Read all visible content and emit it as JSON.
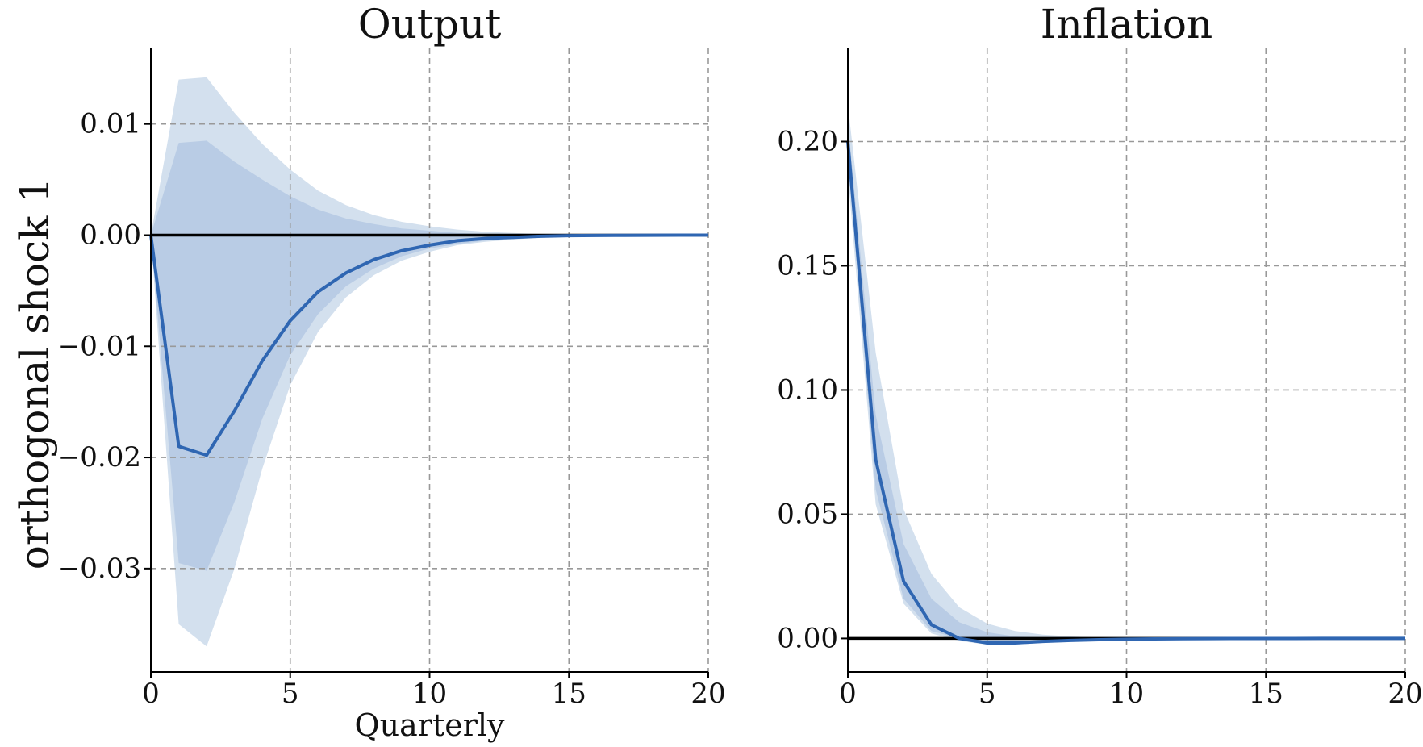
{
  "figure": {
    "ylabel": "orthogonal shock 1",
    "colors": {
      "line": "#2f66b2",
      "band_outer": "#d3e0ee",
      "band_inner": "#b9cce5",
      "zero_line": "#000000",
      "grid": "#999999"
    }
  },
  "chart_data": [
    {
      "type": "line",
      "title": "Output",
      "xlabel": "Quarterly",
      "ylabel": "orthogonal shock 1",
      "x": [
        0,
        1,
        2,
        3,
        4,
        5,
        6,
        7,
        8,
        9,
        10,
        11,
        12,
        13,
        14,
        15,
        16,
        17,
        18,
        19,
        20
      ],
      "xlim": [
        0,
        20
      ],
      "ylim": [
        -0.0393,
        0.0168
      ],
      "xticks": [
        0,
        5,
        10,
        15,
        20
      ],
      "xtick_labels": [
        "0",
        "5",
        "10",
        "15",
        "20"
      ],
      "yticks": [
        0.01,
        0.0,
        -0.01,
        -0.02,
        -0.03
      ],
      "ytick_labels": [
        "0.01",
        "0.00",
        "−0.01",
        "−0.02",
        "−0.03"
      ],
      "grid": true,
      "zero_line": true,
      "series": [
        {
          "values": [
            0.0,
            -0.019,
            -0.0198,
            -0.0158,
            -0.0113,
            -0.0077,
            -0.0051,
            -0.0034,
            -0.0022,
            -0.0014,
            -0.0009,
            -0.0005,
            -0.0003,
            -0.0002,
            -0.0001,
            -5e-05,
            -3e-05,
            -2e-05,
            -1e-05,
            0.0,
            0.0
          ]
        }
      ],
      "bands": [
        {
          "level": "outer",
          "upper": [
            0.0,
            0.014,
            0.0142,
            0.011,
            0.0082,
            0.0059,
            0.004,
            0.0027,
            0.0018,
            0.0012,
            0.0008,
            0.0005,
            0.0003,
            0.0002,
            0.0001,
            5e-05,
            3e-05,
            2e-05,
            1e-05,
            0.0,
            0.0
          ],
          "lower": [
            0.0,
            -0.035,
            -0.037,
            -0.03,
            -0.021,
            -0.0135,
            -0.0087,
            -0.0056,
            -0.0036,
            -0.0023,
            -0.0015,
            -0.0009,
            -0.0006,
            -0.0004,
            -0.0002,
            -0.0001,
            -6e-05,
            -4e-05,
            -2e-05,
            -1e-05,
            0.0
          ]
        },
        {
          "level": "inner",
          "upper": [
            0.0,
            0.0083,
            0.0085,
            0.0066,
            0.005,
            0.0035,
            0.0023,
            0.0015,
            0.001,
            0.0006,
            0.0004,
            0.0002,
            0.0001,
            6e-05,
            3e-05,
            2e-05,
            1e-05,
            0.0,
            0.0,
            0.0,
            0.0
          ],
          "lower": [
            0.0,
            -0.0295,
            -0.0302,
            -0.024,
            -0.0165,
            -0.0108,
            -0.0071,
            -0.0046,
            -0.003,
            -0.0019,
            -0.0012,
            -0.0008,
            -0.0005,
            -0.0003,
            -0.0002,
            -0.0001,
            -5e-05,
            -3e-05,
            -2e-05,
            -1e-05,
            0.0
          ]
        }
      ]
    },
    {
      "type": "line",
      "title": "Inflation",
      "xlabel": "",
      "ylabel": "",
      "x": [
        0,
        1,
        2,
        3,
        4,
        5,
        6,
        7,
        8,
        9,
        10,
        11,
        12,
        13,
        14,
        15,
        16,
        17,
        18,
        19,
        20
      ],
      "xlim": [
        0,
        20
      ],
      "ylim": [
        -0.0135,
        0.2375
      ],
      "xticks": [
        0,
        5,
        10,
        15,
        20
      ],
      "xtick_labels": [
        "0",
        "5",
        "10",
        "15",
        "20"
      ],
      "yticks": [
        0.2,
        0.15,
        0.1,
        0.05,
        0.0
      ],
      "ytick_labels": [
        "0.20",
        "0.15",
        "0.10",
        "0.05",
        "0.00"
      ],
      "grid": true,
      "zero_line": true,
      "series": [
        {
          "values": [
            0.2,
            0.072,
            0.023,
            0.0055,
            0.0,
            -0.0018,
            -0.0018,
            -0.0012,
            -0.0008,
            -0.0005,
            -0.0003,
            -0.0002,
            -0.0001,
            -5e-05,
            -3e-05,
            -2e-05,
            -1e-05,
            0.0,
            0.0,
            0.0,
            0.0
          ]
        }
      ],
      "bands": [
        {
          "level": "outer",
          "upper": [
            0.215,
            0.115,
            0.052,
            0.026,
            0.0125,
            0.006,
            0.003,
            0.0015,
            0.0008,
            0.0004,
            0.0002,
            0.0001,
            5e-05,
            3e-05,
            2e-05,
            1e-05,
            0.0,
            0.0,
            0.0,
            0.0,
            0.0
          ],
          "lower": [
            0.187,
            0.054,
            0.014,
            0.002,
            -0.001,
            -0.0025,
            -0.0025,
            -0.0018,
            -0.0012,
            -0.0008,
            -0.0005,
            -0.0003,
            -0.0002,
            -0.0001,
            -5e-05,
            -3e-05,
            -2e-05,
            -1e-05,
            0.0,
            0.0,
            0.0
          ]
        },
        {
          "level": "inner",
          "upper": [
            0.208,
            0.09,
            0.038,
            0.016,
            0.0065,
            0.0025,
            0.0008,
            0.0003,
            0.0001,
            5e-05,
            2e-05,
            1e-05,
            0.0,
            0.0,
            0.0,
            0.0,
            0.0,
            0.0,
            0.0,
            0.0,
            0.0
          ],
          "lower": [
            0.193,
            0.06,
            0.016,
            0.003,
            0.0,
            -0.002,
            -0.002,
            -0.0015,
            -0.001,
            -0.0006,
            -0.0004,
            -0.0002,
            -0.0001,
            -5e-05,
            -3e-05,
            -2e-05,
            -1e-05,
            0.0,
            0.0,
            0.0,
            0.0
          ]
        }
      ]
    }
  ]
}
